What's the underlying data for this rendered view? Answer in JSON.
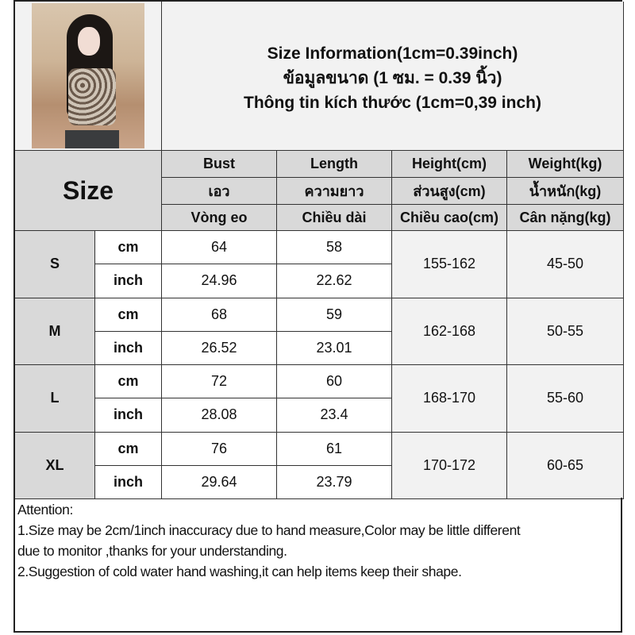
{
  "title": {
    "line1": "Size Information(1cm=0.39inch)",
    "line2": "ข้อมูลขนาด (1 ซม. = 0.39 นิ้ว)",
    "line3": "Thông tin kích thước (1cm=0,39 inch)"
  },
  "size_label": "Size",
  "headers": [
    [
      "Bust",
      "Length",
      "Height(cm)",
      "Weight(kg)"
    ],
    [
      "เอว",
      "ความยาว",
      "ส่วนสูง(cm)",
      "น้ำหนัก(kg)"
    ],
    [
      "Vòng eo",
      "Chiều dài",
      "Chiều cao(cm)",
      "Cân nặng(kg)"
    ]
  ],
  "rows": [
    {
      "size": "S",
      "cm_label": "cm",
      "inch_label": "inch",
      "bust_cm": "64",
      "length_cm": "58",
      "bust_in": "24.96",
      "length_in": "22.62",
      "height": "155-162",
      "weight": "45-50"
    },
    {
      "size": "M",
      "cm_label": "cm",
      "inch_label": "inch",
      "bust_cm": "68",
      "length_cm": "59",
      "bust_in": "26.52",
      "length_in": "23.01",
      "height": "162-168",
      "weight": "50-55"
    },
    {
      "size": "L",
      "cm_label": "cm",
      "inch_label": "inch",
      "bust_cm": "72",
      "length_cm": "60",
      "bust_in": "28.08",
      "length_in": "23.4",
      "height": "168-170",
      "weight": "55-60"
    },
    {
      "size": "XL",
      "cm_label": "cm",
      "inch_label": "inch",
      "bust_cm": "76",
      "length_cm": "61",
      "bust_in": "29.64",
      "length_in": "23.79",
      "height": "170-172",
      "weight": "60-65"
    }
  ],
  "notes": {
    "heading": "Attention:",
    "line1": "1.Size may be 2cm/1inch inaccuracy due to hand measure,Color may be little different",
    "line2": "due to monitor ,thanks for your understanding.",
    "line3": "2.Suggestion of cold water hand washing,it can help items keep their shape."
  }
}
